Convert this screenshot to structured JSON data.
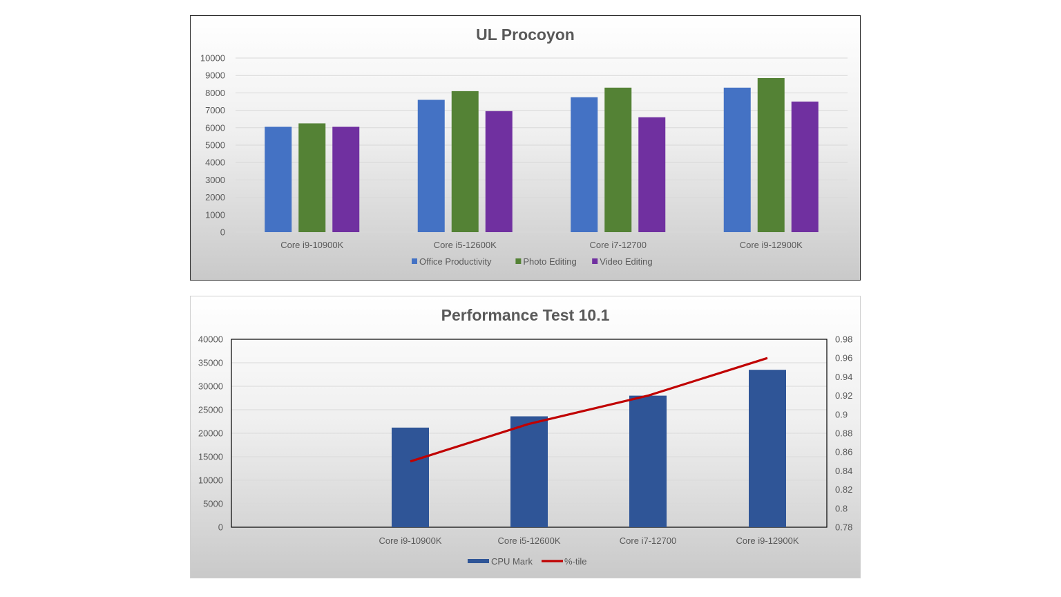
{
  "chart_data": [
    {
      "type": "bar",
      "title": "UL Procoyon",
      "categories": [
        "Core i9-10900K",
        "Core i5-12600K",
        "Core i7-12700",
        "Core i9-12900K"
      ],
      "series": [
        {
          "name": "Office Productivity",
          "color": "#4472c4",
          "values": [
            6050,
            7600,
            7750,
            8300
          ]
        },
        {
          "name": "Photo Editing",
          "color": "#548235",
          "values": [
            6250,
            8100,
            8300,
            8850
          ]
        },
        {
          "name": "Video Editing",
          "color": "#7030a0",
          "values": [
            6050,
            6950,
            6600,
            7500
          ]
        }
      ],
      "ylim": [
        0,
        10000
      ],
      "yticks": [
        0,
        1000,
        2000,
        3000,
        4000,
        5000,
        6000,
        7000,
        8000,
        9000,
        10000
      ],
      "grid": true,
      "legend": "bottom"
    },
    {
      "type": "bar",
      "title": "Performance Test 10.1",
      "categories": [
        "Core i9-10900K",
        "Core i5-12600K",
        "Core i7-12700",
        "Core i9-12900K"
      ],
      "series": [
        {
          "name": "CPU Mark",
          "color": "#2f5597",
          "axis": "left",
          "type": "bar",
          "values": [
            21200,
            23600,
            28000,
            33500
          ]
        },
        {
          "name": "%-tile",
          "color": "#c00000",
          "axis": "right",
          "type": "line",
          "values": [
            0.85,
            0.89,
            0.92,
            0.96
          ]
        }
      ],
      "ylim": [
        0,
        40000
      ],
      "yticks": [
        0,
        5000,
        10000,
        15000,
        20000,
        25000,
        30000,
        35000,
        40000
      ],
      "y2lim": [
        0.78,
        0.98
      ],
      "y2ticks": [
        "0.78",
        "0.8",
        "0.82",
        "0.84",
        "0.86",
        "0.88",
        "0.9",
        "0.92",
        "0.94",
        "0.96",
        "0.98"
      ],
      "grid": true,
      "legend": "bottom"
    }
  ]
}
